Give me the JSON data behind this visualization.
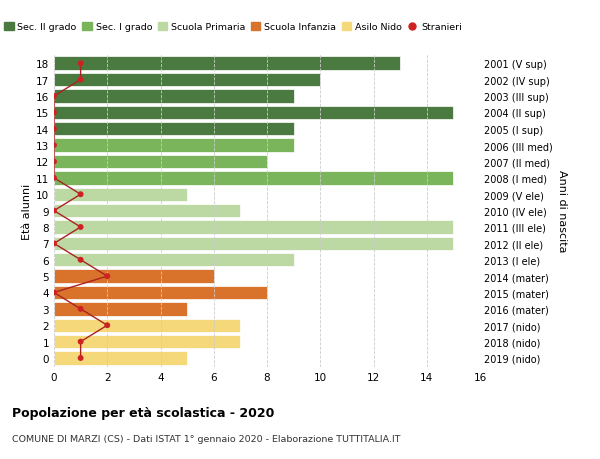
{
  "ages": [
    18,
    17,
    16,
    15,
    14,
    13,
    12,
    11,
    10,
    9,
    8,
    7,
    6,
    5,
    4,
    3,
    2,
    1,
    0
  ],
  "right_labels": [
    "2001 (V sup)",
    "2002 (IV sup)",
    "2003 (III sup)",
    "2004 (II sup)",
    "2005 (I sup)",
    "2006 (III med)",
    "2007 (II med)",
    "2008 (I med)",
    "2009 (V ele)",
    "2010 (IV ele)",
    "2011 (III ele)",
    "2012 (II ele)",
    "2013 (I ele)",
    "2014 (mater)",
    "2015 (mater)",
    "2016 (mater)",
    "2017 (nido)",
    "2018 (nido)",
    "2019 (nido)"
  ],
  "bar_values": [
    13,
    10,
    9,
    15,
    9,
    9,
    8,
    15,
    5,
    7,
    15,
    15,
    9,
    6,
    8,
    5,
    7,
    7,
    5
  ],
  "bar_colors": [
    "#4a7a40",
    "#4a7a40",
    "#4a7a40",
    "#4a7a40",
    "#4a7a40",
    "#7ab55c",
    "#7ab55c",
    "#7ab55c",
    "#bcd9a3",
    "#bcd9a3",
    "#bcd9a3",
    "#bcd9a3",
    "#bcd9a3",
    "#d9722a",
    "#d9722a",
    "#d9722a",
    "#f5d87a",
    "#f5d87a",
    "#f5d87a"
  ],
  "stranieri_values": [
    1,
    1,
    0,
    0,
    0,
    0,
    0,
    0,
    1,
    0,
    1,
    0,
    1,
    2,
    0,
    1,
    2,
    1,
    1
  ],
  "title": "Popolazione per età scolastica - 2020",
  "subtitle": "COMUNE DI MARZI (CS) - Dati ISTAT 1° gennaio 2020 - Elaborazione TUTTITALIA.IT",
  "ylabel_label": "Età alunni",
  "right_axis_label": "Anni di nascita",
  "xlim": [
    0,
    16
  ],
  "xticks": [
    0,
    2,
    4,
    6,
    8,
    10,
    12,
    14,
    16
  ],
  "legend_items": [
    {
      "label": "Sec. II grado",
      "color": "#4a7a40"
    },
    {
      "label": "Sec. I grado",
      "color": "#7ab55c"
    },
    {
      "label": "Scuola Primaria",
      "color": "#bcd9a3"
    },
    {
      "label": "Scuola Infanzia",
      "color": "#d9722a"
    },
    {
      "label": "Asilo Nido",
      "color": "#f5d87a"
    },
    {
      "label": "Stranieri",
      "color": "#cc2222"
    }
  ],
  "bar_height": 0.82,
  "background_color": "#ffffff",
  "grid_color": "#cccccc",
  "stranieri_line_color": "#aa2222",
  "stranieri_dot_color": "#cc2222",
  "stranieri_dot_size": 18
}
